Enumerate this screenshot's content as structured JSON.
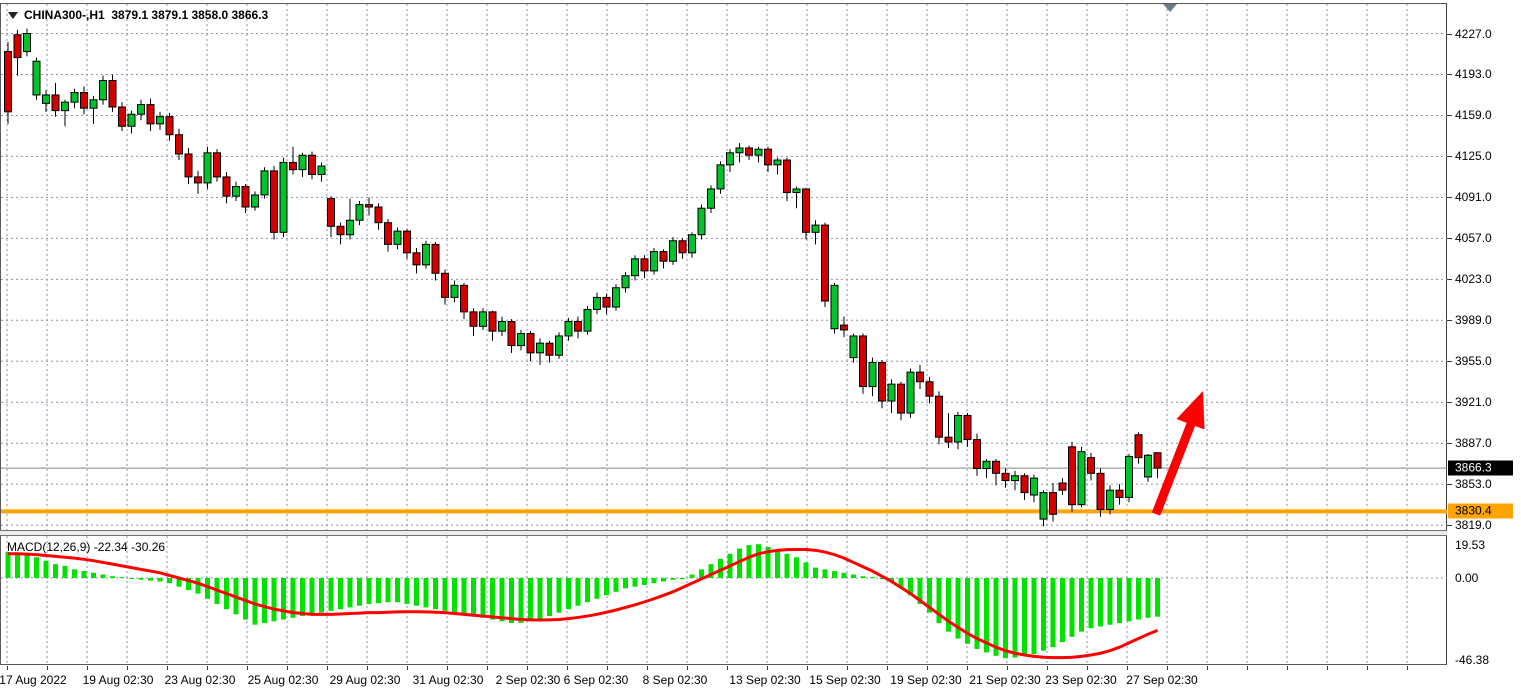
{
  "window_title": "CHINA300 H1 chart with MACD",
  "header": {
    "symbol_period": "CHINA300-,H1",
    "ohlc_text": "3879.1 3879.1 3858.0 3866.3",
    "triangle_icon": "symbol-dropdown-triangle"
  },
  "indicator": {
    "label": "MACD(12,26,9) -22.34 -30.26"
  },
  "price_axis": {
    "labels": [
      "4227.0",
      "4193.0",
      "4159.0",
      "4125.0",
      "4091.0",
      "4057.0",
      "4023.0",
      "3989.0",
      "3955.0",
      "3921.0",
      "3887.0",
      "3853.0",
      "3819.0"
    ],
    "current_price_badge": "3866.3",
    "level_badge": "3830.4"
  },
  "macd_axis": {
    "labels": [
      "19.53",
      "0.00",
      "-46.38"
    ]
  },
  "time_axis": {
    "labels": [
      {
        "text": "17 Aug 2022",
        "x": 33
      },
      {
        "text": "19 Aug 02:30",
        "x": 118
      },
      {
        "text": "23 Aug 02:30",
        "x": 200
      },
      {
        "text": "25 Aug 02:30",
        "x": 283
      },
      {
        "text": "29 Aug 02:30",
        "x": 365
      },
      {
        "text": "31 Aug 02:30",
        "x": 448
      },
      {
        "text": "2 Sep 02:30",
        "x": 528
      },
      {
        "text": "6 Sep 02:30",
        "x": 596
      },
      {
        "text": "8 Sep 02:30",
        "x": 675
      },
      {
        "text": "13 Sep 02:30",
        "x": 765
      },
      {
        "text": "15 Sep 02:30",
        "x": 845
      },
      {
        "text": "19 Sep 02:30",
        "x": 926
      },
      {
        "text": "21 Sep 02:30",
        "x": 1005
      },
      {
        "text": "23 Sep 02:30",
        "x": 1081
      },
      {
        "text": "27 Sep 02:30",
        "x": 1162
      }
    ]
  },
  "colors": {
    "bull": "#00C22B",
    "bear": "#D40000",
    "wick": "#000000",
    "histogram": "#00E100",
    "signal_line": "#FF0000",
    "grid": "#8A94B0",
    "level_line": "#FFA400",
    "current_price_line": "#888888",
    "arrow": "#FF0000"
  },
  "chart_data": [
    {
      "type": "candlestick",
      "title": "CHINA300-,H1",
      "last_bar": {
        "open": 3879.1,
        "high": 3879.1,
        "low": 3858.0,
        "close": 3866.3
      },
      "ylim": [
        3819,
        4244
      ],
      "grid_prices": [
        4227,
        4193,
        4159,
        4125,
        4091,
        4057,
        4023,
        3989,
        3955,
        3921,
        3887,
        3853,
        3819
      ],
      "current_price": 3866.3,
      "support_level": 3830.4,
      "annotation": "red up-trend arrow from support level toward 3921 area",
      "candles": [
        [
          4212,
          4220,
          4152,
          4162
        ],
        [
          4226,
          4230,
          4192,
          4207
        ],
        [
          4212,
          4231,
          4208,
          4227
        ],
        [
          4176,
          4207,
          4172,
          4204
        ],
        [
          4169,
          4180,
          4162,
          4176
        ],
        [
          4176,
          4186,
          4158,
          4163
        ],
        [
          4163,
          4172,
          4150,
          4170
        ],
        [
          4170,
          4181,
          4165,
          4178
        ],
        [
          4178,
          4183,
          4160,
          4165
        ],
        [
          4165,
          4175,
          4152,
          4172
        ],
        [
          4172,
          4192,
          4168,
          4188
        ],
        [
          4188,
          4193,
          4162,
          4166
        ],
        [
          4166,
          4170,
          4146,
          4150
        ],
        [
          4150,
          4163,
          4144,
          4160
        ],
        [
          4160,
          4172,
          4155,
          4168
        ],
        [
          4168,
          4173,
          4146,
          4152
        ],
        [
          4152,
          4162,
          4147,
          4158
        ],
        [
          4158,
          4161,
          4138,
          4143
        ],
        [
          4143,
          4148,
          4122,
          4127
        ],
        [
          4127,
          4132,
          4102,
          4108
        ],
        [
          4108,
          4113,
          4094,
          4103
        ],
        [
          4103,
          4133,
          4098,
          4128
        ],
        [
          4128,
          4131,
          4104,
          4108
        ],
        [
          4108,
          4112,
          4086,
          4092
        ],
        [
          4092,
          4104,
          4088,
          4100
        ],
        [
          4100,
          4102,
          4078,
          4083
        ],
        [
          4083,
          4096,
          4080,
          4093
        ],
        [
          4093,
          4116,
          4090,
          4113
        ],
        [
          4113,
          4117,
          4056,
          4062
        ],
        [
          4062,
          4124,
          4058,
          4120
        ],
        [
          4120,
          4133,
          4110,
          4114
        ],
        [
          4114,
          4128,
          4108,
          4126
        ],
        [
          4126,
          4129,
          4106,
          4110
        ],
        [
          4110,
          4120,
          4104,
          4117
        ],
        [
          4090,
          4092,
          4058,
          4067
        ],
        [
          4067,
          4070,
          4052,
          4060
        ],
        [
          4060,
          4090,
          4056,
          4072
        ],
        [
          4072,
          4088,
          4068,
          4085
        ],
        [
          4085,
          4091,
          4076,
          4083
        ],
        [
          4083,
          4086,
          4064,
          4070
        ],
        [
          4070,
          4073,
          4046,
          4052
        ],
        [
          4052,
          4066,
          4048,
          4063
        ],
        [
          4063,
          4065,
          4040,
          4045
        ],
        [
          4045,
          4049,
          4028,
          4035
        ],
        [
          4035,
          4055,
          4032,
          4052
        ],
        [
          4052,
          4054,
          4022,
          4028
        ],
        [
          4028,
          4031,
          4002,
          4008
        ],
        [
          4008,
          4022,
          4004,
          4018
        ],
        [
          4018,
          4020,
          3990,
          3996
        ],
        [
          3996,
          3999,
          3976,
          3984
        ],
        [
          3984,
          3999,
          3981,
          3996
        ],
        [
          3996,
          3997,
          3972,
          3980
        ],
        [
          3980,
          3992,
          3976,
          3988
        ],
        [
          3988,
          3990,
          3962,
          3968
        ],
        [
          3968,
          3981,
          3964,
          3978
        ],
        [
          3978,
          3980,
          3955,
          3962
        ],
        [
          3962,
          3974,
          3952,
          3970
        ],
        [
          3970,
          3972,
          3954,
          3960
        ],
        [
          3960,
          3979,
          3957,
          3976
        ],
        [
          3976,
          3991,
          3972,
          3988
        ],
        [
          3988,
          3992,
          3974,
          3980
        ],
        [
          3980,
          4001,
          3977,
          3998
        ],
        [
          3998,
          4012,
          3994,
          4008
        ],
        [
          4008,
          4011,
          3994,
          4000
        ],
        [
          4000,
          4019,
          3997,
          4016
        ],
        [
          4016,
          4029,
          4012,
          4026
        ],
        [
          4026,
          4043,
          4022,
          4040
        ],
        [
          4040,
          4043,
          4024,
          4030
        ],
        [
          4030,
          4049,
          4027,
          4046
        ],
        [
          4046,
          4048,
          4032,
          4038
        ],
        [
          4038,
          4058,
          4035,
          4055
        ],
        [
          4055,
          4057,
          4040,
          4045
        ],
        [
          4045,
          4062,
          4041,
          4060
        ],
        [
          4060,
          4085,
          4056,
          4082
        ],
        [
          4082,
          4101,
          4078,
          4098
        ],
        [
          4098,
          4121,
          4094,
          4118
        ],
        [
          4118,
          4131,
          4112,
          4128
        ],
        [
          4128,
          4136,
          4120,
          4132
        ],
        [
          4132,
          4134,
          4122,
          4126
        ],
        [
          4126,
          4133,
          4120,
          4131
        ],
        [
          4131,
          4133,
          4112,
          4118
        ],
        [
          4118,
          4124,
          4110,
          4122
        ],
        [
          4122,
          4124,
          4088,
          4095
        ],
        [
          4095,
          4100,
          4082,
          4098
        ],
        [
          4098,
          4099,
          4056,
          4062
        ],
        [
          4062,
          4072,
          4052,
          4068
        ],
        [
          4068,
          4070,
          4000,
          4005
        ],
        [
          3982,
          4020,
          3978,
          4018
        ],
        [
          3985,
          3992,
          3975,
          3981
        ],
        [
          3958,
          3978,
          3954,
          3976
        ],
        [
          3976,
          3978,
          3928,
          3934
        ],
        [
          3934,
          3958,
          3926,
          3954
        ],
        [
          3954,
          3956,
          3916,
          3922
        ],
        [
          3922,
          3940,
          3912,
          3936
        ],
        [
          3936,
          3938,
          3906,
          3912
        ],
        [
          3912,
          3949,
          3908,
          3946
        ],
        [
          3946,
          3952,
          3932,
          3938
        ],
        [
          3938,
          3942,
          3920,
          3926
        ],
        [
          3926,
          3930,
          3886,
          3892
        ],
        [
          3892,
          3912,
          3883,
          3888
        ],
        [
          3888,
          3913,
          3882,
          3910
        ],
        [
          3910,
          3912,
          3884,
          3890
        ],
        [
          3890,
          3895,
          3860,
          3866
        ],
        [
          3866,
          3874,
          3858,
          3872
        ],
        [
          3872,
          3874,
          3852,
          3862
        ],
        [
          3862,
          3866,
          3850,
          3856
        ],
        [
          3856,
          3864,
          3848,
          3860
        ],
        [
          3860,
          3862,
          3840,
          3846
        ],
        [
          3844,
          3861,
          3838,
          3858
        ],
        [
          3824,
          3848,
          3818,
          3846
        ],
        [
          3846,
          3854,
          3822,
          3828
        ],
        [
          3854,
          3858,
          3844,
          3848
        ],
        [
          3884,
          3888,
          3830,
          3836
        ],
        [
          3836,
          3884,
          3834,
          3880
        ],
        [
          3875,
          3879,
          3856,
          3862
        ],
        [
          3862,
          3866,
          3826,
          3832
        ],
        [
          3832,
          3852,
          3828,
          3848
        ],
        [
          3848,
          3853,
          3836,
          3842
        ],
        [
          3842,
          3878,
          3838,
          3876
        ],
        [
          3894,
          3896,
          3870,
          3875
        ],
        [
          3859,
          3878,
          3855,
          3877
        ],
        [
          3879.1,
          3879.1,
          3858.0,
          3866.3
        ]
      ]
    },
    {
      "type": "bar",
      "name": "MACD(12,26,9)",
      "current_values": {
        "macd": -22.34,
        "signal": -30.26
      },
      "ylim": [
        -46.38,
        19.53
      ],
      "zero_line": 0.0,
      "hist": [
        15,
        14,
        13,
        12,
        10,
        8,
        7,
        5,
        4,
        3,
        2,
        1,
        0.5,
        -0.5,
        -1,
        -1.5,
        -2,
        -3,
        -5,
        -7,
        -9,
        -12,
        -15,
        -18,
        -21,
        -24,
        -27,
        -26,
        -25,
        -24,
        -23,
        -22,
        -21,
        -20,
        -19,
        -18,
        -17,
        -16,
        -15,
        -14.5,
        -14,
        -14,
        -15,
        -16,
        -17,
        -18,
        -19,
        -20,
        -21,
        -22,
        -23,
        -24,
        -25,
        -26,
        -26,
        -25,
        -24,
        -22,
        -20,
        -18,
        -16,
        -14,
        -12,
        -10,
        -8,
        -6,
        -5,
        -4,
        -3,
        -2,
        -1,
        -0.5,
        2,
        5,
        8,
        11,
        14,
        17,
        19,
        19.53,
        18,
        16,
        14,
        12,
        9,
        6,
        5,
        4,
        3,
        2,
        1,
        0.5,
        -0.5,
        -2,
        -6,
        -10,
        -15,
        -20,
        -26,
        -31,
        -35,
        -38,
        -41,
        -43,
        -45,
        -46.38,
        -46,
        -45,
        -44,
        -42,
        -40,
        -37,
        -34,
        -31,
        -29,
        -28,
        -27,
        -26,
        -25,
        -24,
        -23,
        -22.34
      ],
      "signal": [
        14,
        14,
        13.8,
        13.5,
        13,
        12.5,
        12,
        11.5,
        10.8,
        10,
        9,
        8,
        7,
        6,
        5,
        4,
        3,
        1.5,
        0,
        -1.5,
        -3,
        -5,
        -7,
        -9,
        -11,
        -13,
        -15,
        -16.5,
        -18,
        -19,
        -20,
        -20.5,
        -21,
        -21,
        -21,
        -20.8,
        -20.5,
        -20.3,
        -20,
        -20,
        -19.8,
        -19.6,
        -19.5,
        -19.5,
        -19.6,
        -19.8,
        -20,
        -20.5,
        -21,
        -21.5,
        -22,
        -22.5,
        -23,
        -23.5,
        -24,
        -24.2,
        -24.3,
        -24.2,
        -24,
        -23.5,
        -22.8,
        -22,
        -21,
        -19.8,
        -18.5,
        -17,
        -15.5,
        -13.8,
        -12,
        -10,
        -8,
        -5.5,
        -3,
        -0.5,
        2,
        4.5,
        7,
        9.5,
        12,
        14,
        15.2,
        16,
        16.4,
        16.5,
        16.5,
        16,
        15,
        13.5,
        11.5,
        9,
        6.5,
        4,
        1,
        -2,
        -5.5,
        -9,
        -13,
        -17,
        -21,
        -25,
        -28.5,
        -32,
        -35,
        -37.5,
        -40,
        -42,
        -43.5,
        -44.5,
        -45.3,
        -45.8,
        -46,
        -46,
        -45.8,
        -45.3,
        -44.5,
        -43.5,
        -42,
        -40,
        -37.5,
        -35,
        -32.5,
        -30.26
      ]
    }
  ]
}
